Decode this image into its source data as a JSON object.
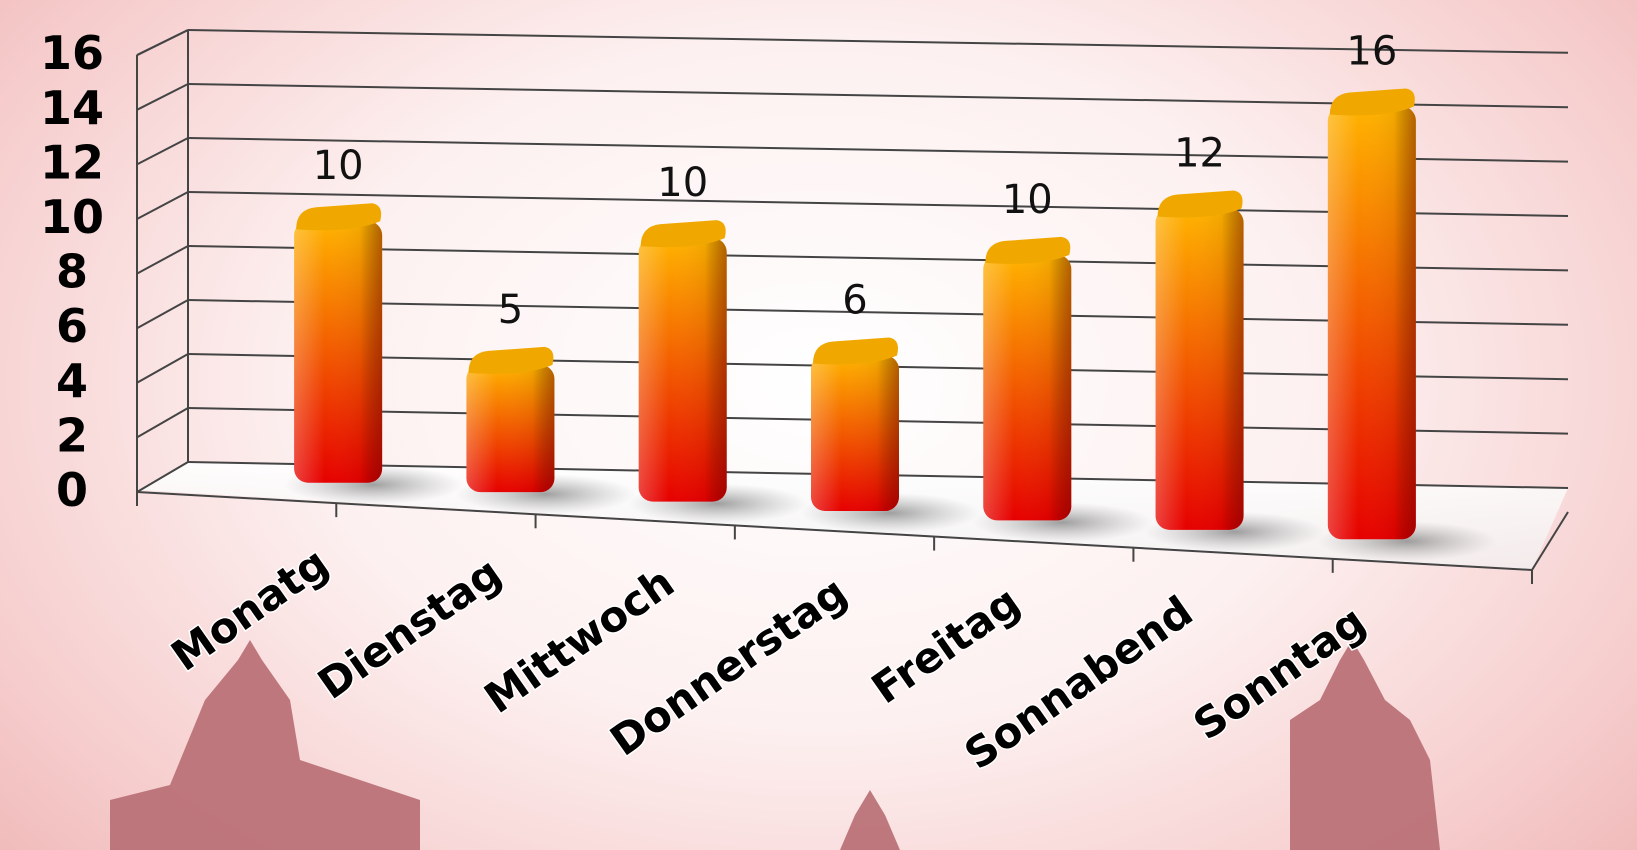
{
  "chart_data": {
    "type": "bar",
    "categories": [
      "Monatg",
      "Dienstag",
      "Mittwoch",
      "Donnerstag",
      "Freitag",
      "Sonnabend",
      "Sonntag"
    ],
    "values": [
      10,
      5,
      10,
      6,
      10,
      12,
      16
    ],
    "title": "",
    "xlabel": "",
    "ylabel": "",
    "ylim": [
      0,
      16
    ],
    "yticks": [
      "0",
      "2",
      "4",
      "6",
      "8",
      "10",
      "12",
      "14",
      "16"
    ],
    "grid": true,
    "legend": "none",
    "style": "3d-cylinder",
    "colors": {
      "bar_top": "#ffb300",
      "bar_bottom": "#e60000",
      "bar_cap": "#f0a800",
      "grid": "#444444",
      "silhouette": "#b76d72"
    }
  }
}
